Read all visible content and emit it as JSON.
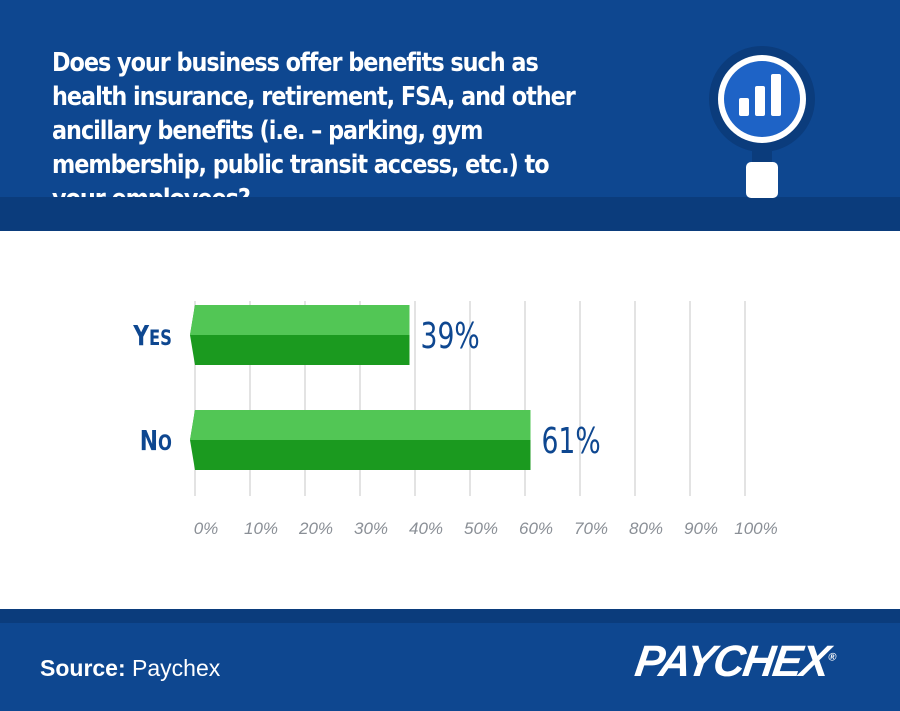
{
  "header": {
    "question": "Does your business offer benefits such as health insurance, retirement, FSA, and other ancillary benefits (i.e. – parking, gym membership, public transit access, etc.) to your employees?",
    "icon": "magnifier-bar-chart-icon"
  },
  "chart_data": {
    "type": "bar",
    "orientation": "horizontal",
    "categories": [
      "Yes",
      "No"
    ],
    "values": [
      39,
      61
    ],
    "value_labels": [
      "39%",
      "61%"
    ],
    "xlim": [
      0,
      100
    ],
    "x_ticks": [
      0,
      10,
      20,
      30,
      40,
      50,
      60,
      70,
      80,
      90,
      100
    ],
    "x_tick_labels": [
      "0%",
      "10%",
      "20%",
      "30%",
      "40%",
      "50%",
      "60%",
      "70%",
      "80%",
      "90%",
      "100%"
    ],
    "grid": true,
    "title": "",
    "xlabel": "",
    "ylabel": "",
    "colors": {
      "bar_light": "#52c655",
      "bar_dark": "#1b9a1f",
      "label": "#0e4790",
      "grid": "#e3e3e3"
    }
  },
  "footer": {
    "source_label": "Source:",
    "source_value": "Paychex",
    "logo_text": "PAYCHEX",
    "logo_mark": "®"
  }
}
